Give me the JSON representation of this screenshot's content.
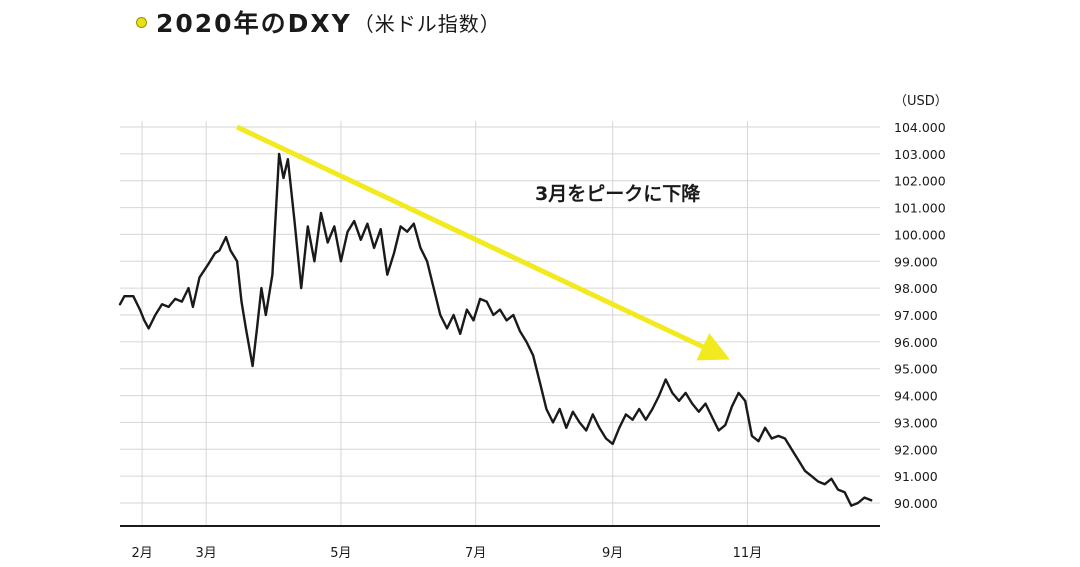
{
  "title": "2020年のDXY",
  "subtitle": "（米ドル指数）",
  "colors": {
    "line": "#1a1a1a",
    "arrow": "#f2ea1e",
    "grid": "#d6d6d6",
    "axis": "#1a1a1a",
    "title_dot": "#e8e11a"
  },
  "chart_data": {
    "type": "line",
    "unit_label": "（USD）",
    "annotation": "3月をピークに下降",
    "xlabel": "",
    "ylabel": "",
    "y_ticks": [
      "104.000",
      "103.000",
      "102.000",
      "101.000",
      "100.000",
      "99.000",
      "98.000",
      "97.000",
      "96.000",
      "95.000",
      "94.000",
      "93.000",
      "92.000",
      "91.000",
      "90.000"
    ],
    "x_ticks": [
      {
        "label": "2月",
        "x": "2020-02-01"
      },
      {
        "label": "3月",
        "x": "2020-03-01"
      },
      {
        "label": "5月",
        "x": "2020-05-01"
      },
      {
        "label": "7月",
        "x": "2020-07-01"
      },
      {
        "label": "9月",
        "x": "2020-09-01"
      },
      {
        "label": "11月",
        "x": "2020-11-01"
      }
    ],
    "ylim": [
      89.3,
      104.2
    ],
    "xlim": [
      "2020-01-22",
      "2020-12-31"
    ],
    "grid": true,
    "trend_arrow": {
      "from": {
        "x": "2020-03-15",
        "y": 104.0
      },
      "to": {
        "x": "2020-10-20",
        "y": 95.5
      }
    },
    "series": [
      {
        "values": [
          {
            "x": "2020-01-22",
            "y": 97.4
          },
          {
            "x": "2020-01-24",
            "y": 97.7
          },
          {
            "x": "2020-01-28",
            "y": 97.7
          },
          {
            "x": "2020-01-31",
            "y": 97.2
          },
          {
            "x": "2020-02-02",
            "y": 96.8
          },
          {
            "x": "2020-02-04",
            "y": 96.5
          },
          {
            "x": "2020-02-07",
            "y": 97.0
          },
          {
            "x": "2020-02-10",
            "y": 97.4
          },
          {
            "x": "2020-02-13",
            "y": 97.3
          },
          {
            "x": "2020-02-16",
            "y": 97.6
          },
          {
            "x": "2020-02-19",
            "y": 97.5
          },
          {
            "x": "2020-02-22",
            "y": 98.0
          },
          {
            "x": "2020-02-24",
            "y": 97.3
          },
          {
            "x": "2020-02-27",
            "y": 98.4
          },
          {
            "x": "2020-03-02",
            "y": 98.9
          },
          {
            "x": "2020-03-05",
            "y": 99.3
          },
          {
            "x": "2020-03-07",
            "y": 99.4
          },
          {
            "x": "2020-03-10",
            "y": 99.9
          },
          {
            "x": "2020-03-12",
            "y": 99.4
          },
          {
            "x": "2020-03-15",
            "y": 99.0
          },
          {
            "x": "2020-03-17",
            "y": 97.5
          },
          {
            "x": "2020-03-19",
            "y": 96.5
          },
          {
            "x": "2020-03-22",
            "y": 95.1
          },
          {
            "x": "2020-03-24",
            "y": 96.5
          },
          {
            "x": "2020-03-26",
            "y": 98.0
          },
          {
            "x": "2020-03-28",
            "y": 97.0
          },
          {
            "x": "2020-03-31",
            "y": 98.5
          },
          {
            "x": "2020-04-03",
            "y": 103.0
          },
          {
            "x": "2020-04-05",
            "y": 102.1
          },
          {
            "x": "2020-04-07",
            "y": 102.8
          },
          {
            "x": "2020-04-10",
            "y": 100.5
          },
          {
            "x": "2020-04-13",
            "y": 98.0
          },
          {
            "x": "2020-04-16",
            "y": 100.3
          },
          {
            "x": "2020-04-19",
            "y": 99.0
          },
          {
            "x": "2020-04-22",
            "y": 100.8
          },
          {
            "x": "2020-04-25",
            "y": 99.7
          },
          {
            "x": "2020-04-28",
            "y": 100.3
          },
          {
            "x": "2020-05-01",
            "y": 99.0
          },
          {
            "x": "2020-05-04",
            "y": 100.1
          },
          {
            "x": "2020-05-07",
            "y": 100.5
          },
          {
            "x": "2020-05-10",
            "y": 99.8
          },
          {
            "x": "2020-05-13",
            "y": 100.4
          },
          {
            "x": "2020-05-16",
            "y": 99.5
          },
          {
            "x": "2020-05-19",
            "y": 100.2
          },
          {
            "x": "2020-05-22",
            "y": 98.5
          },
          {
            "x": "2020-05-25",
            "y": 99.3
          },
          {
            "x": "2020-05-28",
            "y": 100.3
          },
          {
            "x": "2020-05-31",
            "y": 100.1
          },
          {
            "x": "2020-06-03",
            "y": 100.4
          },
          {
            "x": "2020-06-06",
            "y": 99.5
          },
          {
            "x": "2020-06-09",
            "y": 99.0
          },
          {
            "x": "2020-06-12",
            "y": 98.0
          },
          {
            "x": "2020-06-15",
            "y": 97.0
          },
          {
            "x": "2020-06-18",
            "y": 96.5
          },
          {
            "x": "2020-06-21",
            "y": 97.0
          },
          {
            "x": "2020-06-24",
            "y": 96.3
          },
          {
            "x": "2020-06-27",
            "y": 97.2
          },
          {
            "x": "2020-06-30",
            "y": 96.8
          },
          {
            "x": "2020-07-03",
            "y": 97.6
          },
          {
            "x": "2020-07-06",
            "y": 97.5
          },
          {
            "x": "2020-07-09",
            "y": 97.0
          },
          {
            "x": "2020-07-12",
            "y": 97.2
          },
          {
            "x": "2020-07-15",
            "y": 96.8
          },
          {
            "x": "2020-07-18",
            "y": 97.0
          },
          {
            "x": "2020-07-21",
            "y": 96.4
          },
          {
            "x": "2020-07-24",
            "y": 96.0
          },
          {
            "x": "2020-07-27",
            "y": 95.5
          },
          {
            "x": "2020-07-30",
            "y": 94.5
          },
          {
            "x": "2020-08-02",
            "y": 93.5
          },
          {
            "x": "2020-08-05",
            "y": 93.0
          },
          {
            "x": "2020-08-08",
            "y": 93.5
          },
          {
            "x": "2020-08-11",
            "y": 92.8
          },
          {
            "x": "2020-08-14",
            "y": 93.4
          },
          {
            "x": "2020-08-17",
            "y": 93.0
          },
          {
            "x": "2020-08-20",
            "y": 92.7
          },
          {
            "x": "2020-08-23",
            "y": 93.3
          },
          {
            "x": "2020-08-26",
            "y": 92.8
          },
          {
            "x": "2020-08-29",
            "y": 92.4
          },
          {
            "x": "2020-09-01",
            "y": 92.2
          },
          {
            "x": "2020-09-04",
            "y": 92.8
          },
          {
            "x": "2020-09-07",
            "y": 93.3
          },
          {
            "x": "2020-09-10",
            "y": 93.1
          },
          {
            "x": "2020-09-13",
            "y": 93.5
          },
          {
            "x": "2020-09-16",
            "y": 93.1
          },
          {
            "x": "2020-09-19",
            "y": 93.5
          },
          {
            "x": "2020-09-22",
            "y": 94.0
          },
          {
            "x": "2020-09-25",
            "y": 94.6
          },
          {
            "x": "2020-09-28",
            "y": 94.1
          },
          {
            "x": "2020-10-01",
            "y": 93.8
          },
          {
            "x": "2020-10-04",
            "y": 94.1
          },
          {
            "x": "2020-10-07",
            "y": 93.7
          },
          {
            "x": "2020-10-10",
            "y": 93.4
          },
          {
            "x": "2020-10-13",
            "y": 93.7
          },
          {
            "x": "2020-10-16",
            "y": 93.2
          },
          {
            "x": "2020-10-19",
            "y": 92.7
          },
          {
            "x": "2020-10-22",
            "y": 92.9
          },
          {
            "x": "2020-10-25",
            "y": 93.6
          },
          {
            "x": "2020-10-28",
            "y": 94.1
          },
          {
            "x": "2020-10-31",
            "y": 93.8
          },
          {
            "x": "2020-11-03",
            "y": 92.5
          },
          {
            "x": "2020-11-06",
            "y": 92.3
          },
          {
            "x": "2020-11-09",
            "y": 92.8
          },
          {
            "x": "2020-11-12",
            "y": 92.4
          },
          {
            "x": "2020-11-15",
            "y": 92.5
          },
          {
            "x": "2020-11-18",
            "y": 92.4
          },
          {
            "x": "2020-11-21",
            "y": 92.0
          },
          {
            "x": "2020-11-24",
            "y": 91.6
          },
          {
            "x": "2020-11-27",
            "y": 91.2
          },
          {
            "x": "2020-11-30",
            "y": 91.0
          },
          {
            "x": "2020-12-03",
            "y": 90.8
          },
          {
            "x": "2020-12-06",
            "y": 90.7
          },
          {
            "x": "2020-12-09",
            "y": 90.9
          },
          {
            "x": "2020-12-12",
            "y": 90.5
          },
          {
            "x": "2020-12-15",
            "y": 90.4
          },
          {
            "x": "2020-12-18",
            "y": 89.9
          },
          {
            "x": "2020-12-21",
            "y": 90.0
          },
          {
            "x": "2020-12-24",
            "y": 90.2
          },
          {
            "x": "2020-12-27",
            "y": 90.1
          }
        ]
      }
    ]
  }
}
